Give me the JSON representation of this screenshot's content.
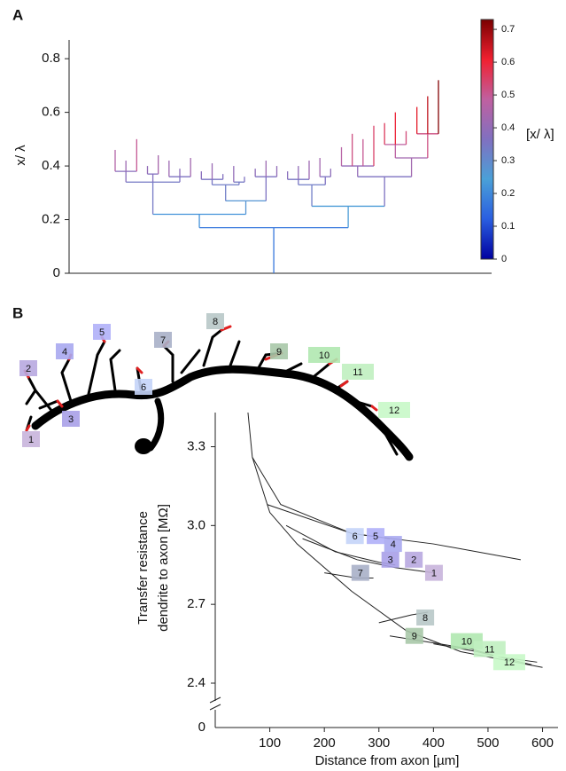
{
  "chart_data": [
    {
      "type": "dendrogram",
      "panel_label": "A",
      "ylabel": "x/ λ",
      "ylim": [
        0,
        0.87
      ],
      "yticks": [
        0,
        0.2,
        0.4,
        0.6,
        0.8
      ],
      "tree": {
        "y": 0.17,
        "children": [
          {
            "y": 0.22,
            "children": [
              {
                "y": 0.34,
                "children": [
                  {
                    "y": 0.38,
                    "children": [
                      {
                        "y": 0.46
                      },
                      {
                        "y": 0.42
                      },
                      {
                        "y": 0.5
                      }
                    ]
                  },
                  {
                    "y": 0.37,
                    "children": [
                      {
                        "y": 0.4
                      },
                      {
                        "y": 0.44
                      }
                    ]
                  },
                  {
                    "y": 0.36,
                    "children": [
                      {
                        "y": 0.42
                      },
                      {
                        "y": 0.39
                      },
                      {
                        "y": 0.43
                      }
                    ]
                  }
                ]
              },
              {
                "y": 0.27,
                "children": [
                  {
                    "y": 0.33,
                    "children": [
                      {
                        "y": 0.35,
                        "children": [
                          {
                            "y": 0.38
                          },
                          {
                            "y": 0.41
                          },
                          {
                            "y": 0.37
                          }
                        ]
                      },
                      {
                        "y": 0.34,
                        "children": [
                          {
                            "y": 0.4
                          },
                          {
                            "y": 0.36
                          }
                        ]
                      }
                    ]
                  },
                  {
                    "y": 0.36,
                    "children": [
                      {
                        "y": 0.39
                      },
                      {
                        "y": 0.42
                      },
                      {
                        "y": 0.4
                      }
                    ]
                  }
                ]
              }
            ]
          },
          {
            "y": 0.25,
            "children": [
              {
                "y": 0.33,
                "children": [
                  {
                    "y": 0.35,
                    "children": [
                      {
                        "y": 0.38
                      },
                      {
                        "y": 0.4
                      },
                      {
                        "y": 0.42
                      }
                    ]
                  },
                  {
                    "y": 0.36,
                    "children": [
                      {
                        "y": 0.43
                      },
                      {
                        "y": 0.39
                      }
                    ]
                  }
                ]
              },
              {
                "y": 0.36,
                "children": [
                  {
                    "y": 0.4,
                    "children": [
                      {
                        "y": 0.47
                      },
                      {
                        "y": 0.52
                      },
                      {
                        "y": 0.5
                      },
                      {
                        "y": 0.55
                      }
                    ]
                  },
                  {
                    "y": 0.43,
                    "children": [
                      {
                        "y": 0.48,
                        "children": [
                          {
                            "y": 0.56
                          },
                          {
                            "y": 0.6
                          },
                          {
                            "y": 0.53
                          }
                        ]
                      },
                      {
                        "y": 0.52,
                        "children": [
                          {
                            "y": 0.62
                          },
                          {
                            "y": 0.66
                          },
                          {
                            "y": 0.72
                          }
                        ]
                      }
                    ]
                  }
                ]
              }
            ]
          }
        ]
      },
      "colorbar": {
        "label": "[x/ λ]",
        "lim": [
          0,
          0.73
        ],
        "ticks": [
          0,
          0.1,
          0.2,
          0.3,
          0.4,
          0.5,
          0.6,
          0.7
        ],
        "colormap": [
          "#0000a0",
          "#2a5ee0",
          "#4aa0d8",
          "#8070c0",
          "#c060a0",
          "#f02030",
          "#7a0000"
        ]
      }
    },
    {
      "type": "line",
      "panel_label": "B",
      "xlabel": "Distance from axon [µm]",
      "ylabel": [
        "Transfer resistance",
        "dendrite to axon [MΩ]"
      ],
      "xlim": [
        0,
        630
      ],
      "ylim": [
        2.4,
        3.43
      ],
      "xticks": [
        100,
        200,
        300,
        400,
        500,
        600
      ],
      "yticks": [
        2.4,
        2.7,
        {
          "value": 3,
          "label": "3.0"
        },
        3.3
      ],
      "y_break_tick": 0,
      "color": "#222222",
      "traces": [
        {
          "x": [
            60,
            68,
            120,
            250,
            400,
            560
          ],
          "y": [
            3.43,
            3.26,
            3.08,
            2.97,
            2.93,
            2.87
          ]
        },
        {
          "x": [
            68,
            100,
            150,
            250,
            350,
            450,
            600
          ],
          "y": [
            3.26,
            3.05,
            2.93,
            2.75,
            2.6,
            2.52,
            2.46
          ]
        },
        {
          "x": [
            130,
            220,
            300,
            330
          ],
          "y": [
            3.0,
            2.9,
            2.86,
            2.85
          ]
        },
        {
          "x": [
            160,
            260,
            330,
            400
          ],
          "y": [
            2.95,
            2.87,
            2.84,
            2.82
          ]
        },
        {
          "x": [
            200,
            260,
            290
          ],
          "y": [
            2.82,
            2.8,
            2.8
          ]
        },
        {
          "x": [
            95,
            250,
            320
          ],
          "y": [
            3.08,
            2.97,
            2.95
          ]
        },
        {
          "x": [
            300,
            360,
            390
          ],
          "y": [
            2.63,
            2.66,
            2.67
          ]
        },
        {
          "x": [
            320,
            380,
            470,
            520,
            590
          ],
          "y": [
            2.58,
            2.56,
            2.53,
            2.5,
            2.48
          ]
        },
        {
          "x": [
            400,
            480,
            580
          ],
          "y": [
            2.55,
            2.52,
            2.47
          ]
        }
      ],
      "terminals": [
        {
          "label": "1",
          "x": 401,
          "y": 2.82,
          "color": "#c8b4dc"
        },
        {
          "label": "2",
          "x": 364,
          "y": 2.87,
          "color": "#b8a8e0"
        },
        {
          "label": "3",
          "x": 321,
          "y": 2.87,
          "color": "#a8a0e8"
        },
        {
          "label": "4",
          "x": 326,
          "y": 2.93,
          "color": "#a8a8f0"
        },
        {
          "label": "5",
          "x": 294,
          "y": 2.96,
          "color": "#b0b0f8"
        },
        {
          "label": "6",
          "x": 256,
          "y": 2.96,
          "color": "#c4d4f8"
        },
        {
          "label": "7",
          "x": 266,
          "y": 2.82,
          "color": "#a8b0c8"
        },
        {
          "label": "8",
          "x": 385,
          "y": 2.65,
          "color": "#b8c8c8"
        },
        {
          "label": "9",
          "x": 365,
          "y": 2.58,
          "color": "#a8c8a8"
        },
        {
          "label": "10",
          "x": 461,
          "y": 2.56,
          "color": "#b0e8b0"
        },
        {
          "label": "11",
          "x": 503,
          "y": 2.53,
          "color": "#c0f0c0"
        },
        {
          "label": "12",
          "x": 539,
          "y": 2.48,
          "color": "#c8f8c8"
        }
      ]
    }
  ]
}
